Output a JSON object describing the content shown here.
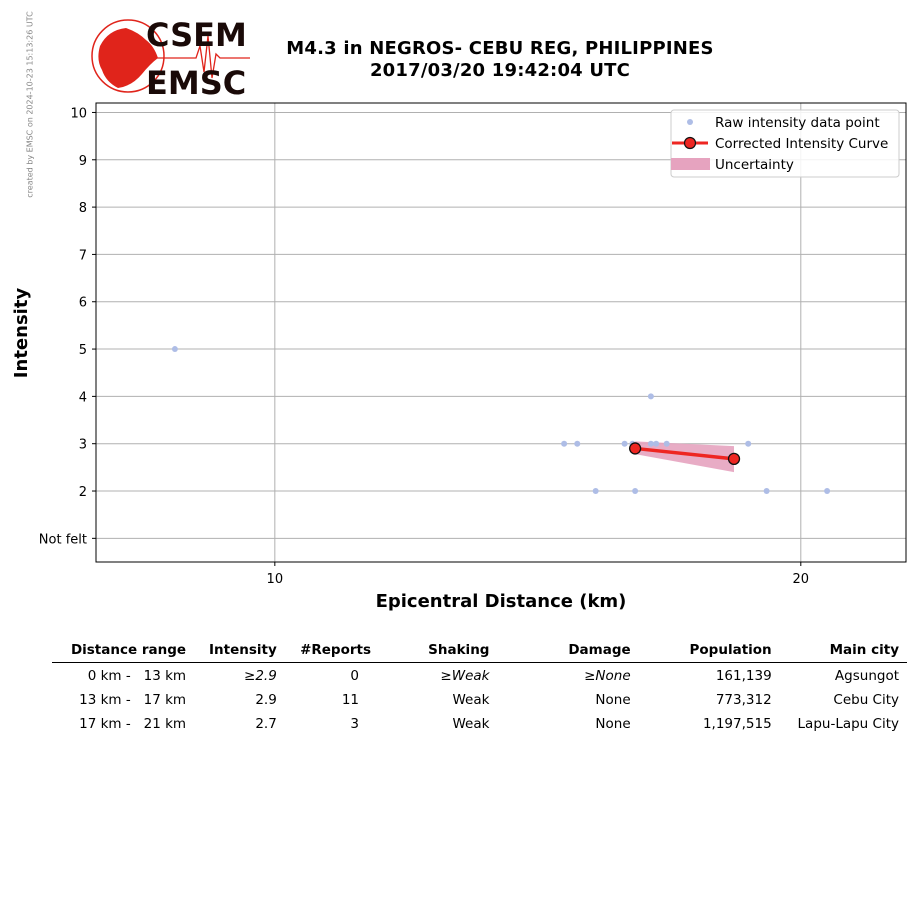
{
  "watermark": "created by EMSC on 2024-10-23 15:13:26 UTC",
  "logo": {
    "line1": "CSEM",
    "line2": "EMSC",
    "brand_red": "#e0241b",
    "brand_dark": "#1a0a08"
  },
  "header": {
    "title_line1": "M4.3 in NEGROS- CEBU REG, PHILIPPINES",
    "title_line2": "2017/03/20 19:42:04 UTC"
  },
  "chart_data": {
    "type": "scatter",
    "xlabel": "Epicentral Distance (km)",
    "ylabel": "Intensity",
    "xlim": [
      6.6,
      22.0
    ],
    "ylim": [
      0.5,
      10.2
    ],
    "x_ticks": [
      10,
      20
    ],
    "y_ticks": [
      1,
      2,
      3,
      4,
      5,
      6,
      7,
      8,
      9,
      10
    ],
    "y_tick_labels": [
      "Not felt",
      "2",
      "3",
      "4",
      "5",
      "6",
      "7",
      "8",
      "9",
      "10"
    ],
    "grid": true,
    "legend_position": "top-right",
    "legend": [
      "Raw intensity data point",
      "Corrected Intensity Curve",
      "Uncertainty"
    ],
    "raw_points": [
      {
        "x": 8.1,
        "y": 5
      },
      {
        "x": 15.5,
        "y": 3
      },
      {
        "x": 15.75,
        "y": 3
      },
      {
        "x": 16.1,
        "y": 2
      },
      {
        "x": 16.65,
        "y": 3
      },
      {
        "x": 16.8,
        "y": 3
      },
      {
        "x": 16.85,
        "y": 2
      },
      {
        "x": 17.15,
        "y": 4
      },
      {
        "x": 17.15,
        "y": 3
      },
      {
        "x": 17.25,
        "y": 3
      },
      {
        "x": 17.45,
        "y": 3
      },
      {
        "x": 19.0,
        "y": 3
      },
      {
        "x": 19.35,
        "y": 2
      },
      {
        "x": 20.5,
        "y": 2
      }
    ],
    "corrected_curve": [
      {
        "x": 16.85,
        "y": 2.9
      },
      {
        "x": 18.73,
        "y": 2.68
      }
    ],
    "uncertainty": {
      "upper": [
        {
          "x": 16.85,
          "y": 3.05
        },
        {
          "x": 18.73,
          "y": 2.95
        }
      ],
      "lower": [
        {
          "x": 16.85,
          "y": 2.78
        },
        {
          "x": 18.73,
          "y": 2.4
        }
      ]
    },
    "colors": {
      "raw": "#aebde6",
      "curve": "#ee2622",
      "marker_edge": "#111111",
      "band": "#e6a3bf",
      "grid": "#b0b0b0"
    }
  },
  "table": {
    "headers": [
      "Distance range",
      "Intensity",
      "#Reports",
      "Shaking",
      "Damage",
      "Population",
      "Main city"
    ],
    "rows": [
      {
        "range": "0 km -   13 km",
        "intensity": "≥2.9",
        "reports": "0",
        "shaking": "≥Weak",
        "damage": "≥None",
        "population": "161,139",
        "city": "Agsungot"
      },
      {
        "range": "13 km -   17 km",
        "intensity": "2.9",
        "reports": "11",
        "shaking": "Weak",
        "damage": "None",
        "population": "773,312",
        "city": "Cebu City"
      },
      {
        "range": "17 km -   21 km",
        "intensity": "2.7",
        "reports": "3",
        "shaking": "Weak",
        "damage": "None",
        "population": "1,197,515",
        "city": "Lapu-Lapu City"
      }
    ]
  }
}
